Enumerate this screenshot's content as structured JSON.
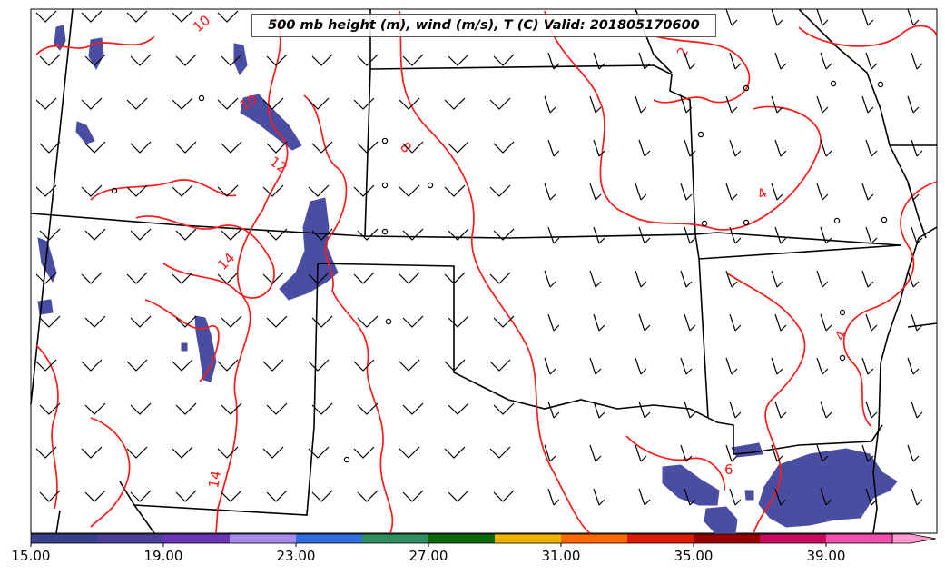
{
  "title": "500 mb height (m), wind (m/s), T (C) Valid: 201805170600",
  "colorbar": {
    "ticks": [
      "15.00",
      "19.00",
      "23.00",
      "27.00",
      "31.00",
      "35.00",
      "39.00"
    ],
    "colors": [
      "#3a3f8f",
      "#4b3f9c",
      "#6a35b8",
      "#a78bef",
      "#2f6fe0",
      "#2e8f5f",
      "#0a6b0a",
      "#f0b400",
      "#ff6a00",
      "#dd1d00",
      "#990000",
      "#c90a5e",
      "#f04fae",
      "#ff9ad0"
    ]
  },
  "contours": {
    "color": "#ff1a1a",
    "labels": [
      "10",
      "10",
      "12",
      "8",
      "2",
      "4",
      "14",
      "4",
      "14",
      "6"
    ]
  },
  "shading": {
    "color": "#4a4ea3"
  }
}
